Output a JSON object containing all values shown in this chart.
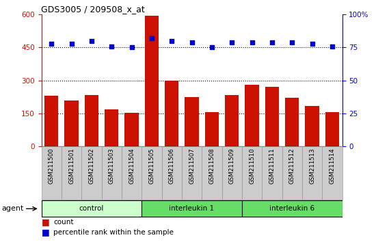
{
  "title": "GDS3005 / 209508_x_at",
  "samples": [
    "GSM211500",
    "GSM211501",
    "GSM211502",
    "GSM211503",
    "GSM211504",
    "GSM211505",
    "GSM211506",
    "GSM211507",
    "GSM211508",
    "GSM211509",
    "GSM211510",
    "GSM211511",
    "GSM211512",
    "GSM211513",
    "GSM211514"
  ],
  "counts": [
    230,
    210,
    235,
    170,
    153,
    595,
    300,
    225,
    155,
    235,
    280,
    270,
    220,
    185,
    155
  ],
  "percentile": [
    78,
    78,
    80,
    76,
    75,
    82,
    80,
    79,
    75,
    79,
    79,
    79,
    79,
    78,
    76
  ],
  "bar_color": "#cc1100",
  "dot_color": "#0000cc",
  "left_ylim": [
    0,
    600
  ],
  "right_ylim": [
    0,
    100
  ],
  "left_yticks": [
    0,
    150,
    300,
    450,
    600
  ],
  "right_yticks": [
    0,
    25,
    50,
    75,
    100
  ],
  "grid_values": [
    150,
    300,
    450
  ],
  "tick_label_color_left": "#cc1100",
  "tick_label_color_right": "#0000cc",
  "agent_label": "agent",
  "legend_count": "count",
  "legend_percentile": "percentile rank within the sample",
  "group_defs": [
    {
      "start": 0,
      "end": 4,
      "label": "control",
      "color": "#ccffcc"
    },
    {
      "start": 5,
      "end": 9,
      "label": "interleukin 1",
      "color": "#66dd66"
    },
    {
      "start": 10,
      "end": 14,
      "label": "interleukin 6",
      "color": "#66dd66"
    }
  ],
  "label_bg_color": "#cccccc",
  "label_edge_color": "#999999"
}
